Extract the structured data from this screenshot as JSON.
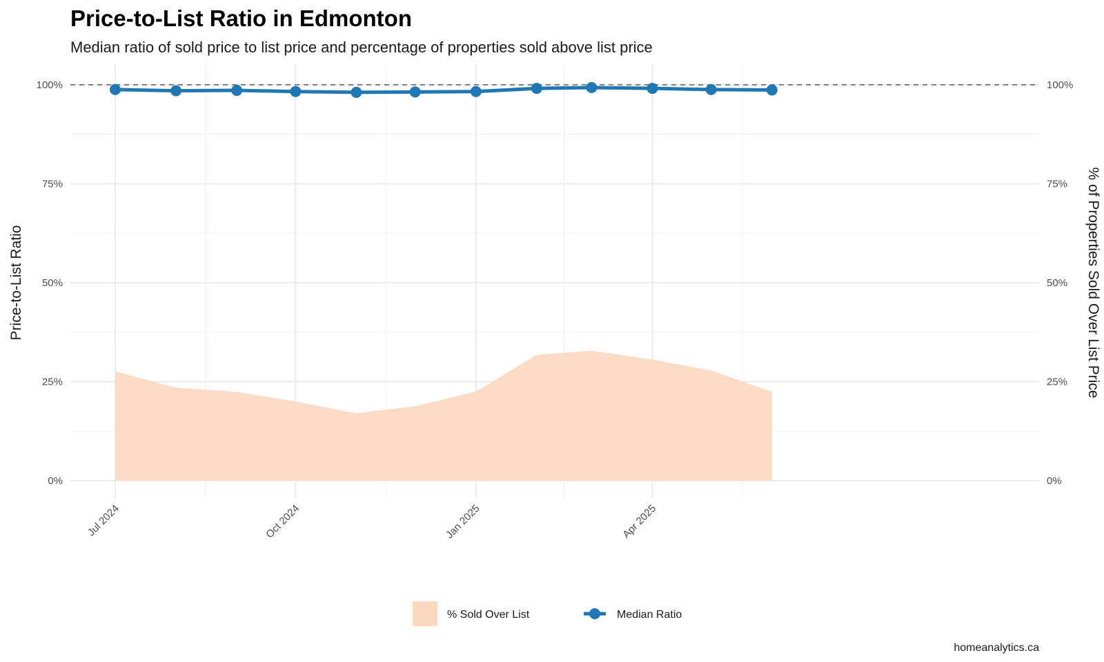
{
  "chart_data": {
    "type": "line",
    "title": "Price-to-List Ratio in Edmonton",
    "subtitle": "Median ratio of sold price to list price and percentage of properties sold above list price",
    "ylabel": "Price-to-List Ratio",
    "y2label": "% of Properties Sold Over List Price",
    "ylim": [
      0,
      1
    ],
    "yticks": [
      "0%",
      "25%",
      "50%",
      "75%",
      "100%"
    ],
    "y2ticks": [
      "0%",
      "25%",
      "50%",
      "75%",
      "100%"
    ],
    "xticks": [
      "Jul 2024",
      "Oct 2024",
      "Jan 2025",
      "Apr 2025"
    ],
    "x": [
      "2024-07-01",
      "2024-08-01",
      "2024-09-01",
      "2024-10-01",
      "2024-11-01",
      "2024-12-01",
      "2025-01-01",
      "2025-02-01",
      "2025-03-01",
      "2025-04-01",
      "2025-05-01",
      "2025-06-01"
    ],
    "reference_line": 1.0,
    "series": [
      {
        "name": "% Sold Over List",
        "kind": "area",
        "color": "#fdd9c2",
        "values": [
          0.276,
          0.235,
          0.224,
          0.2,
          0.17,
          0.188,
          0.225,
          0.318,
          0.328,
          0.306,
          0.278,
          0.224
        ]
      },
      {
        "name": "Median Ratio",
        "kind": "line",
        "color": "#1f77b4",
        "values": [
          0.988,
          0.985,
          0.986,
          0.983,
          0.981,
          0.982,
          0.983,
          0.991,
          0.993,
          0.991,
          0.988,
          0.987
        ]
      }
    ],
    "legend": "bottom",
    "caption": "homeanalytics.ca"
  }
}
